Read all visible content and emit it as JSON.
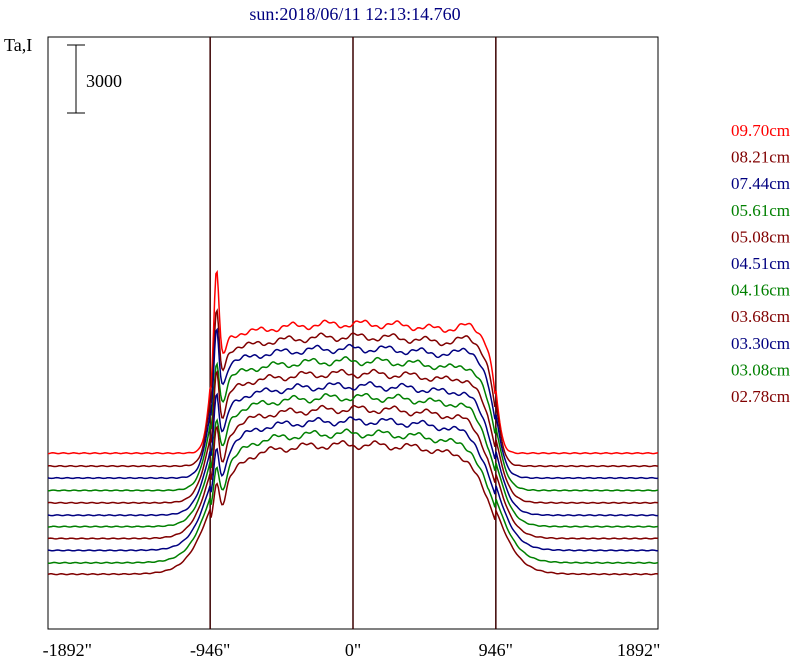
{
  "chart_data": {
    "type": "line",
    "title": "sun:2018/06/11 12:13:14.760",
    "ylabel": "Ta,I",
    "scale_bar_label": "3000",
    "xlim": [
      -2020,
      2020
    ],
    "x_ticks": [
      -1892,
      -946,
      0,
      946,
      1892
    ],
    "x_tick_labels": [
      "-1892\"",
      "-946\"",
      "0\"",
      "946\"",
      "1892\""
    ],
    "vertical_markers": [
      -946,
      0,
      946
    ],
    "series": [
      {
        "name": "09.70cm",
        "color": "#ff0000",
        "baseline": 2250,
        "peak": 1700
      },
      {
        "name": "08.21cm",
        "color": "#800000",
        "baseline": 2000,
        "peak": 1280
      },
      {
        "name": "07.44cm",
        "color": "#000080",
        "baseline": 1770,
        "peak": 1260
      },
      {
        "name": "05.61cm",
        "color": "#008000",
        "baseline": 1530,
        "peak": 900
      },
      {
        "name": "05.08cm",
        "color": "#800000",
        "baseline": 1290,
        "peak": 1050
      },
      {
        "name": "04.51cm",
        "color": "#000080",
        "baseline": 1050,
        "peak": 900
      },
      {
        "name": "04.16cm",
        "color": "#008000",
        "baseline": 830,
        "peak": 640
      },
      {
        "name": "03.68cm",
        "color": "#800000",
        "baseline": 600,
        "peak": 760
      },
      {
        "name": "03.30cm",
        "color": "#000080",
        "baseline": 370,
        "peak": 600
      },
      {
        "name": "03.08cm",
        "color": "#008000",
        "baseline": 130,
        "peak": 520
      },
      {
        "name": "02.78cm",
        "color": "#800000",
        "baseline": -90,
        "peak": 440
      }
    ]
  }
}
